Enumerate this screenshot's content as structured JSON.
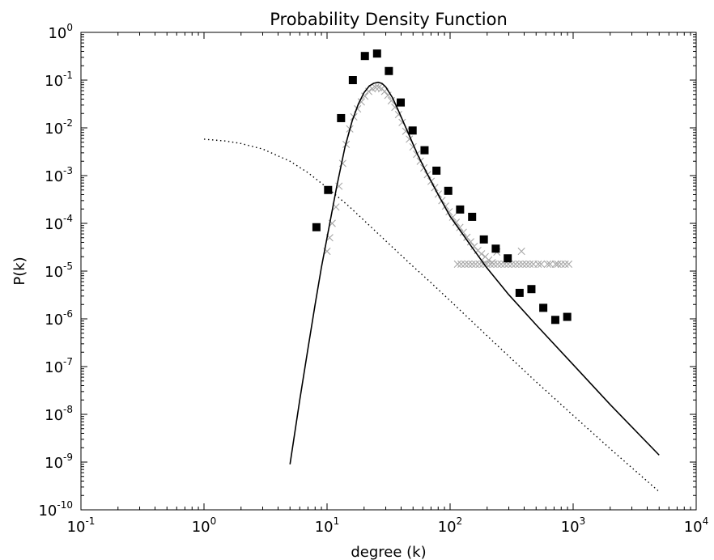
{
  "chart_data": {
    "type": "scatter",
    "title": "Probability Density Function",
    "xlabel": "degree (k)",
    "ylabel": "P(k)",
    "xscale": "log",
    "yscale": "log",
    "xlim": [
      0.1,
      10000
    ],
    "ylim": [
      1e-10,
      1
    ],
    "grid": false,
    "x_ticks": [
      {
        "value": 0.1,
        "base": "10",
        "exp": "-1"
      },
      {
        "value": 1,
        "base": "10",
        "exp": "0"
      },
      {
        "value": 10,
        "base": "10",
        "exp": "1"
      },
      {
        "value": 100,
        "base": "10",
        "exp": "2"
      },
      {
        "value": 1000,
        "base": "10",
        "exp": "3"
      },
      {
        "value": 10000,
        "base": "10",
        "exp": "4"
      }
    ],
    "y_ticks": [
      {
        "value": 1,
        "base": "10",
        "exp": "0"
      },
      {
        "value": 0.1,
        "base": "10",
        "exp": "-1"
      },
      {
        "value": 0.01,
        "base": "10",
        "exp": "-2"
      },
      {
        "value": 0.001,
        "base": "10",
        "exp": "-3"
      },
      {
        "value": 0.0001,
        "base": "10",
        "exp": "-4"
      },
      {
        "value": 1e-05,
        "base": "10",
        "exp": "-5"
      },
      {
        "value": 1e-06,
        "base": "10",
        "exp": "-6"
      },
      {
        "value": 1e-07,
        "base": "10",
        "exp": "-7"
      },
      {
        "value": 1e-08,
        "base": "10",
        "exp": "-8"
      },
      {
        "value": 1e-09,
        "base": "10",
        "exp": "-9"
      },
      {
        "value": 1e-10,
        "base": "10",
        "exp": "-10"
      }
    ],
    "series": [
      {
        "style": "square-markers",
        "color": "#000000",
        "points": [
          [
            8.2,
            8.3e-05
          ],
          [
            10.2,
            0.0005
          ],
          [
            13,
            0.016
          ],
          [
            16.2,
            0.1
          ],
          [
            20.3,
            0.32
          ],
          [
            25.5,
            0.36
          ],
          [
            31.8,
            0.155
          ],
          [
            39.7,
            0.034
          ],
          [
            49.6,
            0.0088
          ],
          [
            62,
            0.0034
          ],
          [
            77.5,
            0.00127
          ],
          [
            96.6,
            0.00048
          ],
          [
            120.6,
            0.000195
          ],
          [
            151,
            0.000137
          ],
          [
            188,
            4.6e-05
          ],
          [
            235,
            2.95e-05
          ],
          [
            294,
            1.85e-05
          ],
          [
            367,
            3.5e-06
          ],
          [
            458,
            4.2e-06
          ],
          [
            572,
            1.7e-06
          ],
          [
            716,
            9.5e-07
          ],
          [
            895,
            1.1e-06
          ]
        ]
      },
      {
        "style": "x-markers",
        "color": "#a8a8a8",
        "points": [
          [
            10,
            2.6e-05
          ],
          [
            10.5,
            5e-05
          ],
          [
            11,
            0.0001
          ],
          [
            11.8,
            0.00022
          ],
          [
            12.5,
            0.0006
          ],
          [
            13.4,
            0.0018
          ],
          [
            14.3,
            0.0045
          ],
          [
            15.3,
            0.0095
          ],
          [
            16.5,
            0.017
          ],
          [
            17.7,
            0.025
          ],
          [
            19,
            0.035
          ],
          [
            20.3,
            0.046
          ],
          [
            21.8,
            0.058
          ],
          [
            23.3,
            0.066
          ],
          [
            24.8,
            0.07
          ],
          [
            26.3,
            0.07
          ],
          [
            27.8,
            0.066
          ],
          [
            29.4,
            0.058
          ],
          [
            31.2,
            0.048
          ],
          [
            33.3,
            0.037
          ],
          [
            35.6,
            0.027
          ],
          [
            38.1,
            0.019
          ],
          [
            40.8,
            0.013
          ],
          [
            43.6,
            0.0085
          ],
          [
            46.7,
            0.0058
          ],
          [
            50,
            0.004
          ],
          [
            53.5,
            0.0028
          ],
          [
            57.2,
            0.002
          ],
          [
            61.2,
            0.00145
          ],
          [
            65.5,
            0.00105
          ],
          [
            70.1,
            0.00076
          ],
          [
            75,
            0.00056
          ],
          [
            80.2,
            0.00041
          ],
          [
            85.8,
            0.0003
          ],
          [
            91.8,
            0.00023
          ],
          [
            98.2,
            0.000175
          ],
          [
            105,
            0.000135
          ],
          [
            112,
            0.000105
          ],
          [
            120,
            8.2e-05
          ],
          [
            128,
            6.5e-05
          ],
          [
            137,
            5.1e-05
          ],
          [
            147,
            4.1e-05
          ],
          [
            157,
            3.3e-05
          ],
          [
            168,
            2.7e-05
          ],
          [
            180,
            2.3e-05
          ],
          [
            193,
            2e-05
          ],
          [
            206,
            1.7e-05
          ],
          [
            220,
            1.5e-05
          ],
          [
            240,
            2.5e-05
          ],
          [
            380,
            2.6e-05
          ],
          [
            115,
            1.4e-05
          ],
          [
            123,
            1.4e-05
          ],
          [
            132,
            1.4e-05
          ],
          [
            141,
            1.4e-05
          ],
          [
            151,
            1.4e-05
          ],
          [
            161,
            1.4e-05
          ],
          [
            173,
            1.4e-05
          ],
          [
            185,
            1.4e-05
          ],
          [
            198,
            1.4e-05
          ],
          [
            212,
            1.4e-05
          ],
          [
            227,
            1.4e-05
          ],
          [
            243,
            1.4e-05
          ],
          [
            260,
            1.4e-05
          ],
          [
            278,
            1.4e-05
          ],
          [
            297,
            1.4e-05
          ],
          [
            318,
            1.4e-05
          ],
          [
            340,
            1.4e-05
          ],
          [
            364,
            1.4e-05
          ],
          [
            389,
            1.4e-05
          ],
          [
            416,
            1.4e-05
          ],
          [
            445,
            1.4e-05
          ],
          [
            476,
            1.4e-05
          ],
          [
            520,
            1.4e-05
          ],
          [
            550,
            1.4e-05
          ],
          [
            620,
            1.4e-05
          ],
          [
            650,
            1.4e-05
          ],
          [
            720,
            1.4e-05
          ],
          [
            750,
            1.4e-05
          ],
          [
            800,
            1.4e-05
          ],
          [
            860,
            1.4e-05
          ],
          [
            920,
            1.4e-05
          ]
        ]
      },
      {
        "style": "solid-line",
        "color": "#000000",
        "points": [
          [
            5,
            9e-10
          ],
          [
            6,
            2e-08
          ],
          [
            7,
            2.4e-07
          ],
          [
            8,
            2e-06
          ],
          [
            9,
            1.2e-05
          ],
          [
            10,
            5e-05
          ],
          [
            12,
            0.0006
          ],
          [
            14,
            0.004
          ],
          [
            16,
            0.014
          ],
          [
            18,
            0.032
          ],
          [
            20,
            0.055
          ],
          [
            22,
            0.075
          ],
          [
            24,
            0.086
          ],
          [
            26,
            0.09
          ],
          [
            28,
            0.085
          ],
          [
            30,
            0.072
          ],
          [
            34,
            0.043
          ],
          [
            38,
            0.023
          ],
          [
            45,
            0.0085
          ],
          [
            55,
            0.0026
          ],
          [
            65,
            0.0011
          ],
          [
            80,
            0.0004
          ],
          [
            100,
            0.00014
          ],
          [
            150,
            3.2e-05
          ],
          [
            200,
            1.15e-05
          ],
          [
            300,
            3.2e-06
          ],
          [
            500,
            7.5e-07
          ],
          [
            1000,
            1.1e-07
          ],
          [
            2000,
            1.6e-08
          ],
          [
            5000,
            1.4e-09
          ]
        ]
      },
      {
        "style": "dotted-line",
        "color": "#000000",
        "points": [
          [
            1,
            0.0058
          ],
          [
            1.5,
            0.0053
          ],
          [
            2,
            0.0047
          ],
          [
            3,
            0.0036
          ],
          [
            5,
            0.002
          ],
          [
            7,
            0.00115
          ],
          [
            10,
            0.00056
          ],
          [
            15,
            0.00023
          ],
          [
            20,
            0.000115
          ],
          [
            30,
            4.3e-05
          ],
          [
            50,
            1.25e-05
          ],
          [
            70,
            5.7e-06
          ],
          [
            100,
            2.4e-06
          ],
          [
            200,
            4.4e-07
          ],
          [
            500,
            4.8e-08
          ],
          [
            1000,
            9.5e-09
          ],
          [
            2000,
            1.9e-09
          ],
          [
            5000,
            2.4e-10
          ]
        ]
      }
    ]
  }
}
